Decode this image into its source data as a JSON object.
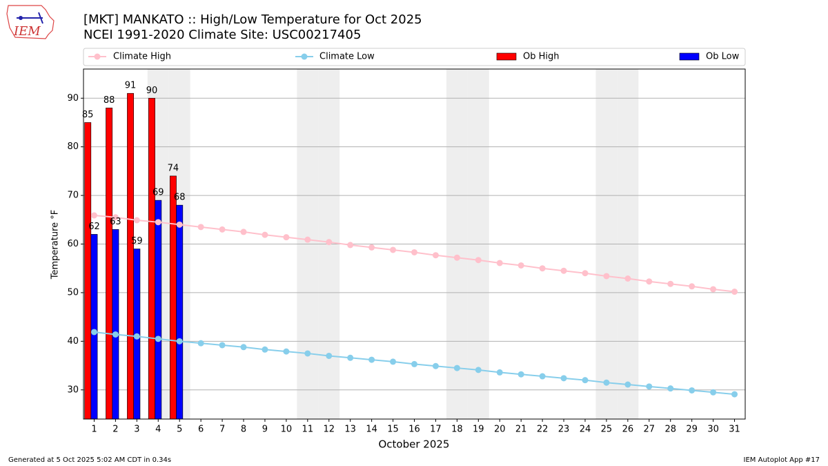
{
  "chart_data": {
    "type": "bar",
    "title": "[MKT] MANKATO :: High/Low Temperature for Oct 2025",
    "subtitle": "NCEI 1991-2020 Climate Site: USC00217405",
    "xlabel": "October 2025",
    "ylabel": "Temperature °F",
    "logo_text": "IEM",
    "footer_left": "Generated at 5 Oct 2025 5:02 AM CDT in 0.34s",
    "footer_right": "IEM Autoplot App #17",
    "x": [
      1,
      2,
      3,
      4,
      5,
      6,
      7,
      8,
      9,
      10,
      11,
      12,
      13,
      14,
      15,
      16,
      17,
      18,
      19,
      20,
      21,
      22,
      23,
      24,
      25,
      26,
      27,
      28,
      29,
      30,
      31
    ],
    "xlim": [
      0.5,
      31.5
    ],
    "xticks": [
      1,
      2,
      3,
      4,
      5,
      6,
      7,
      8,
      9,
      10,
      11,
      12,
      13,
      14,
      15,
      16,
      17,
      18,
      19,
      20,
      21,
      22,
      23,
      24,
      25,
      26,
      27,
      28,
      29,
      30,
      31
    ],
    "ylim": [
      24,
      96
    ],
    "yticks": [
      30,
      40,
      50,
      60,
      70,
      80,
      90
    ],
    "grid": true,
    "shaded_days": [
      4,
      5,
      11,
      12,
      18,
      19,
      25,
      26
    ],
    "series": [
      {
        "name": "Climate High",
        "kind": "line",
        "color": "#ffc0cb",
        "values": [
          65.9,
          65.5,
          64.9,
          64.5,
          64.0,
          63.5,
          63.0,
          62.5,
          61.9,
          61.4,
          60.9,
          60.4,
          59.8,
          59.3,
          58.8,
          58.3,
          57.7,
          57.2,
          56.7,
          56.1,
          55.6,
          55.0,
          54.5,
          54.0,
          53.4,
          52.9,
          52.3,
          51.8,
          51.3,
          50.7,
          50.2
        ]
      },
      {
        "name": "Climate Low",
        "kind": "line",
        "color": "#87ceeb",
        "values": [
          41.9,
          41.4,
          41.0,
          40.5,
          40.0,
          39.6,
          39.2,
          38.8,
          38.3,
          37.9,
          37.5,
          37.0,
          36.6,
          36.2,
          35.8,
          35.3,
          34.9,
          34.5,
          34.1,
          33.6,
          33.2,
          32.8,
          32.4,
          32.0,
          31.5,
          31.1,
          30.7,
          30.3,
          29.9,
          29.5,
          29.1
        ]
      },
      {
        "name": "Ob High",
        "kind": "bar",
        "color": "#ff0000",
        "values": [
          85,
          88,
          91,
          90,
          74,
          null,
          null,
          null,
          null,
          null,
          null,
          null,
          null,
          null,
          null,
          null,
          null,
          null,
          null,
          null,
          null,
          null,
          null,
          null,
          null,
          null,
          null,
          null,
          null,
          null,
          null
        ]
      },
      {
        "name": "Ob Low",
        "kind": "bar",
        "color": "#0000ff",
        "values": [
          62,
          63,
          59,
          69,
          68,
          null,
          null,
          null,
          null,
          null,
          null,
          null,
          null,
          null,
          null,
          null,
          null,
          null,
          null,
          null,
          null,
          null,
          null,
          null,
          null,
          null,
          null,
          null,
          null,
          null,
          null
        ]
      }
    ]
  }
}
